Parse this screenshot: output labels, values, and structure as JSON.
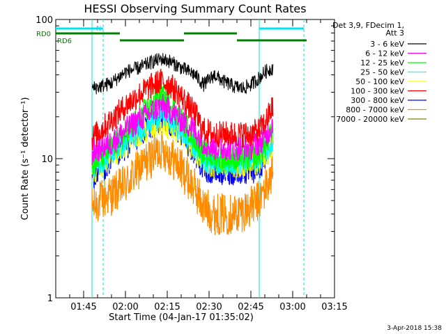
{
  "chart_data": {
    "type": "line",
    "title": "HESSI Observing Summary Count Rates",
    "xlabel": "Start Time (04-Jan-17 01:35:02)",
    "ylabel": "Count Rate (s⁻¹ detector⁻¹)",
    "yscale": "log",
    "ylim": [
      1,
      100
    ],
    "xlim_minutes": [
      0,
      100
    ],
    "x_ticks": [
      {
        "t": 10,
        "label": "01:45"
      },
      {
        "t": 25,
        "label": "02:00"
      },
      {
        "t": 40,
        "label": "02:15"
      },
      {
        "t": 55,
        "label": "02:30"
      },
      {
        "t": 70,
        "label": "02:45"
      },
      {
        "t": 85,
        "label": "03:00"
      },
      {
        "t": 100,
        "label": "03:15"
      }
    ],
    "y_tick_labels": [
      {
        "v": 1,
        "label": "1"
      },
      {
        "v": 10,
        "label": "10"
      },
      {
        "v": 100,
        "label": "100"
      }
    ],
    "legend_header": [
      "Det 3,9, FDecim 1,",
      "Att 3"
    ],
    "legend_position": "right",
    "series": [
      {
        "name": "3 - 6 keV",
        "color": "#000000",
        "x": [
          13,
          16,
          20,
          25,
          30,
          35,
          38,
          41,
          45,
          50,
          53,
          57,
          60,
          64,
          67,
          70,
          73,
          75,
          78
        ],
        "values": [
          32,
          33,
          35,
          42,
          45,
          50,
          52,
          50,
          45,
          40,
          34,
          40,
          36,
          33,
          32,
          34,
          38,
          42,
          45
        ]
      },
      {
        "name": "6 - 12 keV",
        "color": "#ff00ff",
        "x": [
          13,
          16,
          20,
          25,
          30,
          35,
          38,
          41,
          45,
          50,
          53,
          57,
          60,
          64,
          67,
          70,
          73,
          75,
          78
        ],
        "values": [
          11,
          12,
          13,
          16,
          19,
          22,
          24,
          22,
          19,
          16,
          13,
          12,
          12,
          12,
          12,
          12,
          13,
          14,
          18
        ]
      },
      {
        "name": "12 - 25 keV",
        "color": "#00ff00",
        "x": [
          13,
          16,
          20,
          25,
          30,
          35,
          38,
          41,
          45,
          50,
          53,
          57,
          60,
          64,
          67,
          70,
          73,
          75,
          78
        ],
        "values": [
          9,
          10,
          12,
          15,
          20,
          25,
          28,
          25,
          19,
          14,
          11,
          10,
          10,
          10,
          10,
          10,
          11,
          12,
          16
        ]
      },
      {
        "name": "25 - 50 keV",
        "color": "#00ffff",
        "x": [
          13,
          16,
          20,
          25,
          30,
          35,
          38,
          41,
          45,
          50,
          53,
          57,
          60,
          64,
          67,
          70,
          73,
          75,
          78
        ],
        "values": [
          8.5,
          9.5,
          11,
          13,
          16,
          19,
          21,
          19,
          16,
          12,
          10,
          9.5,
          9.5,
          9.5,
          9.5,
          9.5,
          10,
          11,
          14
        ]
      },
      {
        "name": "50 - 100 keV",
        "color": "#ffff00",
        "x": [
          13,
          16,
          20,
          25,
          30,
          35,
          38,
          41,
          45,
          50,
          53,
          57,
          60,
          64,
          67,
          70,
          73,
          75,
          78
        ],
        "values": [
          8,
          9,
          10.5,
          12.5,
          15,
          17,
          18,
          17,
          15,
          11.5,
          9.5,
          9,
          9,
          9,
          9,
          9,
          9.5,
          10.5,
          13
        ]
      },
      {
        "name": "100 - 300 keV",
        "color": "#ff0000",
        "x": [
          13,
          16,
          20,
          25,
          30,
          35,
          38,
          41,
          45,
          50,
          53,
          57,
          60,
          64,
          67,
          70,
          73,
          75,
          78
        ],
        "values": [
          14,
          16,
          19,
          24,
          29,
          34,
          36,
          34,
          28,
          21,
          16,
          15,
          15,
          15,
          15,
          15,
          16,
          18,
          24
        ]
      },
      {
        "name": "300 - 800 keV",
        "color": "#0000ff",
        "x": [
          13,
          16,
          20,
          25,
          30,
          35,
          38,
          41,
          45,
          50,
          53,
          57,
          60,
          64,
          67,
          70,
          73,
          75,
          78
        ],
        "values": [
          7.5,
          8,
          9.5,
          12,
          15,
          17.5,
          19,
          17.5,
          15,
          11,
          8.5,
          8,
          8,
          8,
          8,
          8,
          8.5,
          10,
          14
        ]
      },
      {
        "name": "800 - 7000 keV",
        "color": "#ff8c00",
        "x": [
          13,
          16,
          20,
          25,
          30,
          35,
          38,
          41,
          45,
          50,
          53,
          57,
          60,
          64,
          67,
          70,
          73,
          75,
          78
        ],
        "values": [
          4.5,
          5,
          5.5,
          6.5,
          8.5,
          10.5,
          12,
          10.5,
          8.5,
          6,
          4.5,
          4,
          4,
          4,
          4.2,
          4.5,
          5,
          6,
          8
        ]
      },
      {
        "name": "7000 - 20000 keV",
        "color": "#808000",
        "x": [],
        "values": []
      }
    ],
    "vertical_lines": [
      {
        "t": 13,
        "style": "solid",
        "color": "#00e5ee"
      },
      {
        "t": 17,
        "style": "dashed",
        "color": "#00e5ee"
      },
      {
        "t": 73,
        "style": "solid",
        "color": "#00e5ee"
      },
      {
        "t": 89,
        "style": "dashed",
        "color": "#00e5ee"
      }
    ],
    "bars": {
      "cyan_N": {
        "segments": [
          [
            0,
            17
          ],
          [
            73,
            89
          ]
        ],
        "color": "#00e5ee"
      },
      "green_upper": {
        "segments": [
          [
            0,
            23
          ],
          [
            46,
            65
          ]
        ],
        "color": "#008000"
      },
      "green_lower": {
        "segments": [
          [
            23,
            46
          ],
          [
            65,
            90
          ]
        ],
        "color": "#008000"
      }
    },
    "flags": {
      "n_label": "N",
      "rd0_label": "RD0",
      "rd6_label": "RD6"
    },
    "date_stamp": "3-Apr-2018 15:38"
  }
}
